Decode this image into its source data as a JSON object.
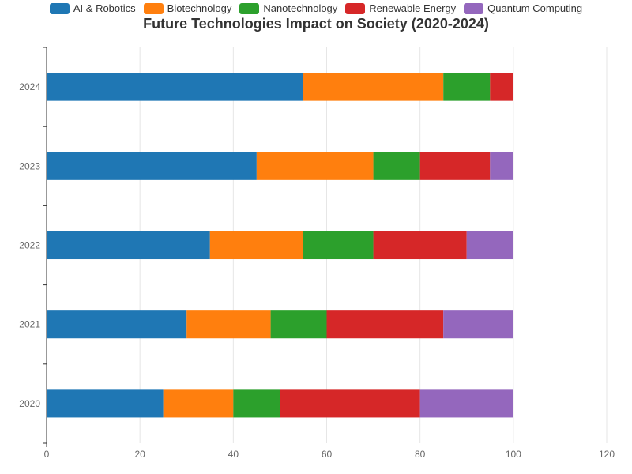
{
  "chart_data": {
    "type": "bar",
    "orientation": "horizontal",
    "stacked": true,
    "title": "Future Technologies Impact on Society (2020-2024)",
    "categories": [
      "2020",
      "2021",
      "2022",
      "2023",
      "2024"
    ],
    "series": [
      {
        "name": "AI & Robotics",
        "color": "#1f77b4",
        "values": [
          25,
          30,
          35,
          45,
          55
        ]
      },
      {
        "name": "Biotechnology",
        "color": "#ff7f0e",
        "values": [
          15,
          18,
          20,
          25,
          30
        ]
      },
      {
        "name": "Nanotechnology",
        "color": "#2ca02c",
        "values": [
          10,
          12,
          15,
          10,
          10
        ]
      },
      {
        "name": "Renewable Energy",
        "color": "#d62728",
        "values": [
          30,
          25,
          20,
          15,
          5
        ]
      },
      {
        "name": "Quantum Computing",
        "color": "#9467bd",
        "values": [
          20,
          15,
          10,
          5,
          0
        ]
      }
    ],
    "xlim": [
      0,
      120
    ],
    "xticks": [
      0,
      20,
      40,
      60,
      80,
      100,
      120
    ],
    "grid": true,
    "legend": "top"
  }
}
